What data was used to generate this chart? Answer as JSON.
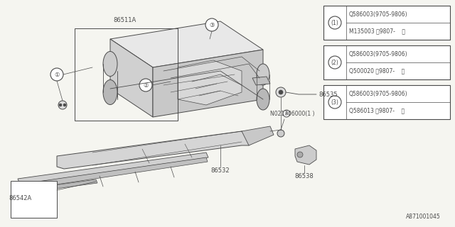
{
  "bg_color": "#f5f5f0",
  "line_color": "#4a4a4a",
  "thin_line": 0.5,
  "med_line": 0.7,
  "thick_line": 1.0,
  "legend_boxes": [
    {
      "circle_num": "1",
      "line1": "Q586003(9705-9806)",
      "line2": "M135003 〈9807-    〉"
    },
    {
      "circle_num": "2",
      "line1": "Q586003(9705-9806)",
      "line2": "Q500020 〈9807-    〉"
    },
    {
      "circle_num": "3",
      "line1": "Q586003(9705-9806)",
      "line2": "Q586013 〈9807-    〉"
    }
  ],
  "footer_text": "A871001045",
  "label_fontsize": 6.0,
  "small_fontsize": 5.5
}
